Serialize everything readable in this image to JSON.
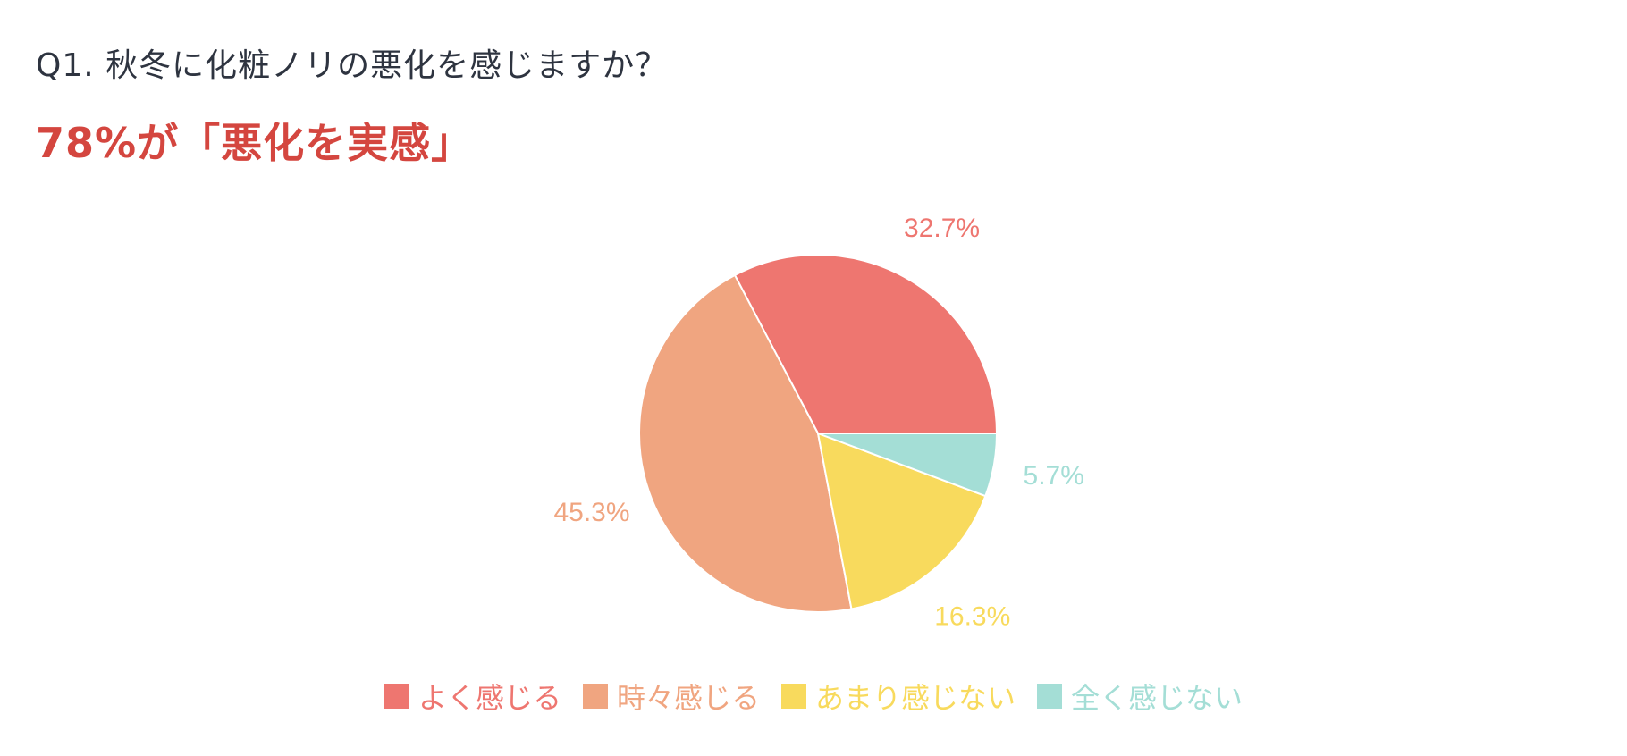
{
  "question": "Q1. 秋冬に化粧ノリの悪化を感じますか？",
  "headline": "78%が「悪化を実感」",
  "colors": {
    "question_text": "#2e3440",
    "headline_text": "#d4463f"
  },
  "chart_data": {
    "type": "pie",
    "title": "",
    "legend_position": "bottom",
    "slices": [
      {
        "label": "よく感じる",
        "value": 32.7,
        "display": "32.7%",
        "color": "#ee7670"
      },
      {
        "label": "時々感じる",
        "value": 45.3,
        "display": "45.3%",
        "color": "#f0a580"
      },
      {
        "label": "あまり感じない",
        "value": 16.3,
        "display": "16.3%",
        "color": "#f8da5d"
      },
      {
        "label": "全く感じない",
        "value": 5.7,
        "display": "5.7%",
        "color": "#a4ded6"
      }
    ]
  }
}
